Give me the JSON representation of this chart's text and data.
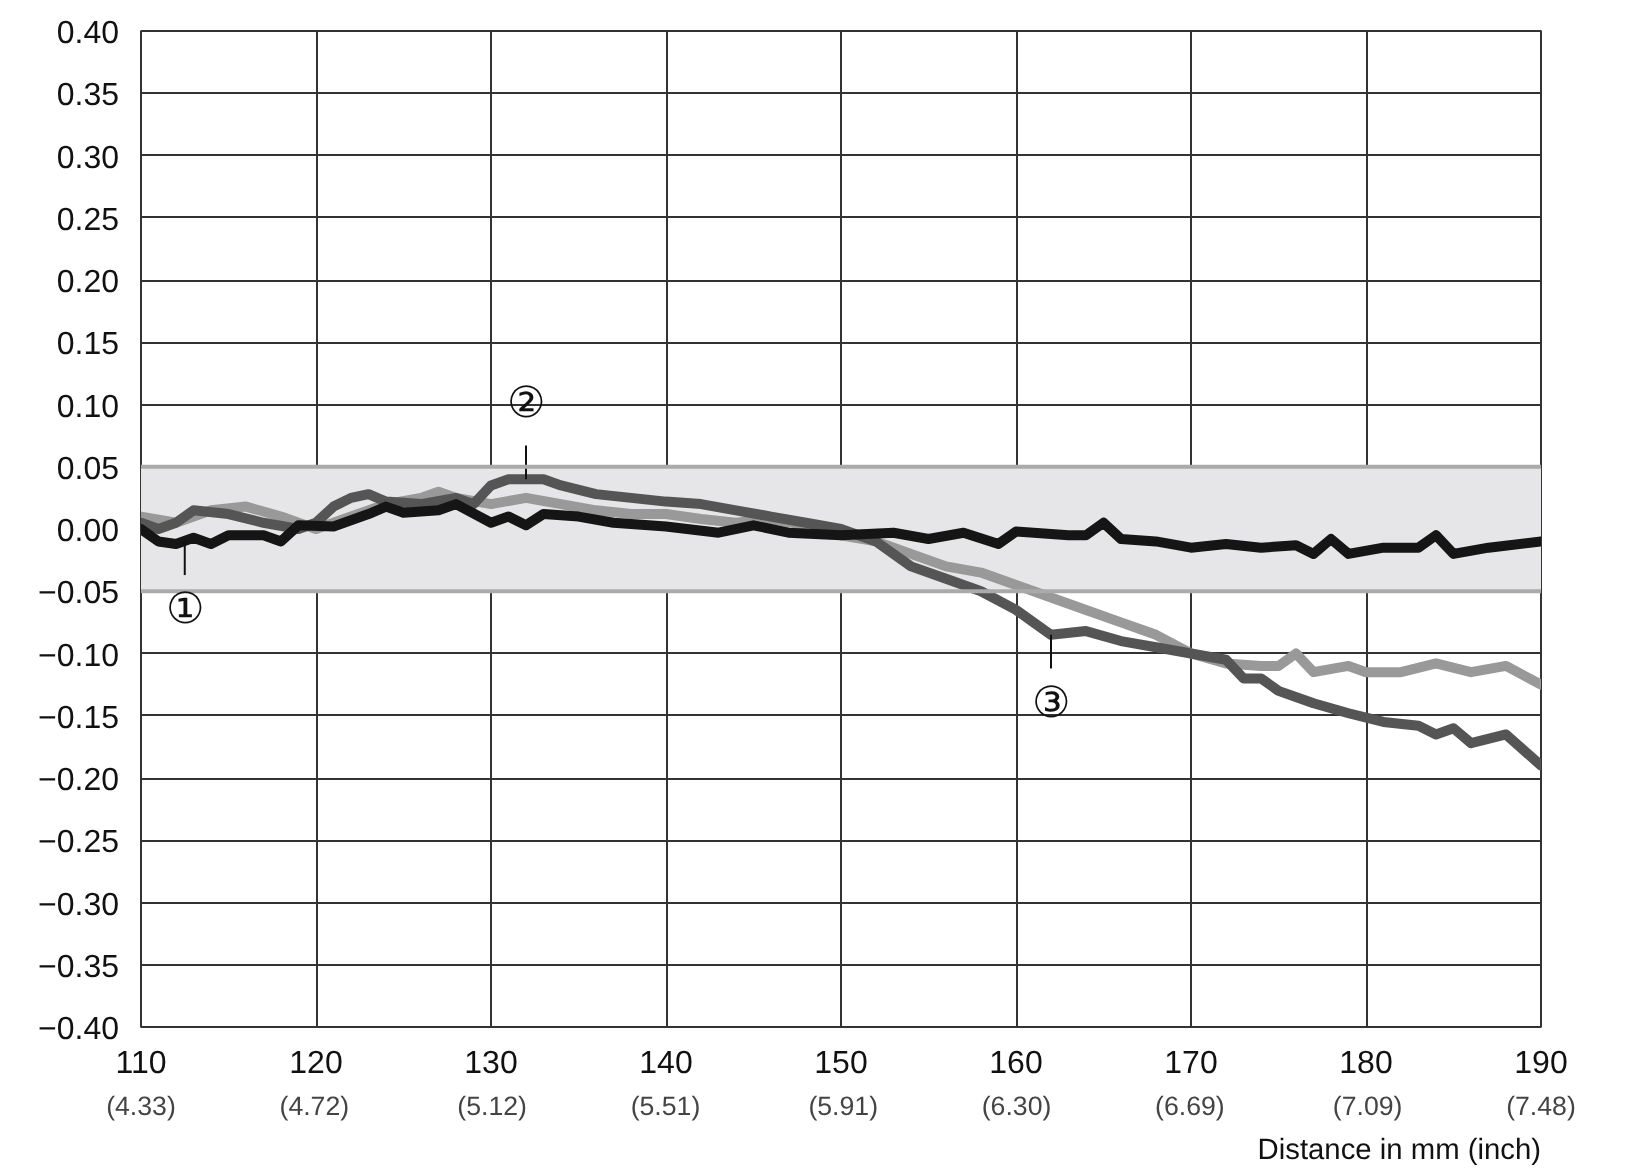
{
  "chart_data": {
    "type": "line",
    "xlabel": "Distance in mm (inch)",
    "xlim": [
      110,
      190
    ],
    "xticks": [
      110,
      120,
      130,
      140,
      150,
      160,
      170,
      180,
      190
    ],
    "x2lim": [
      4.33,
      7.48
    ],
    "x2ticks": [
      {
        "value": 4.33,
        "label": "(4.33)"
      },
      {
        "value": 4.72,
        "label": "(4.72)"
      },
      {
        "value": 5.12,
        "label": "(5.12)"
      },
      {
        "value": 5.51,
        "label": "(5.51)"
      },
      {
        "value": 5.91,
        "label": "(5.91)"
      },
      {
        "value": 6.3,
        "label": "(6.30)"
      },
      {
        "value": 6.69,
        "label": "(6.69)"
      },
      {
        "value": 7.09,
        "label": "(7.09)"
      },
      {
        "value": 7.48,
        "label": "(7.48)"
      }
    ],
    "ylim": [
      -0.4,
      0.4
    ],
    "yticks": [
      {
        "value": -0.4,
        "label": "−0.40"
      },
      {
        "value": -0.35,
        "label": "−0.35"
      },
      {
        "value": -0.3,
        "label": "−0.30"
      },
      {
        "value": -0.25,
        "label": "−0.25"
      },
      {
        "value": -0.2,
        "label": "−0.20"
      },
      {
        "value": -0.15,
        "label": "−0.15"
      },
      {
        "value": -0.1,
        "label": "−0.10"
      },
      {
        "value": -0.05,
        "label": "−0.05"
      },
      {
        "value": 0,
        "label": "0.00"
      },
      {
        "value": 0.05,
        "label": "0.05"
      },
      {
        "value": 0.1,
        "label": "0.10"
      },
      {
        "value": 0.15,
        "label": "0.15"
      },
      {
        "value": 0.2,
        "label": "0.20"
      },
      {
        "value": 0.25,
        "label": "0.25"
      },
      {
        "value": 0.3,
        "label": "0.30"
      },
      {
        "value": 0.35,
        "label": "0.35"
      },
      {
        "value": 0.4,
        "label": "0.40"
      }
    ],
    "grid": true,
    "line_style": "solid",
    "marker": "none",
    "bands": [
      {
        "axis": "y",
        "from": -0.05,
        "to": 0.05,
        "color": "#e6e6e8"
      }
    ],
    "series": [
      {
        "color": "#999999",
        "x": [
          110,
          112,
          114,
          116,
          118,
          120,
          122,
          124,
          126,
          127,
          128,
          130,
          132,
          134,
          136,
          138,
          140,
          142,
          144,
          146,
          148,
          150,
          152,
          154,
          156,
          158,
          160,
          162,
          164,
          166,
          168,
          170,
          172,
          174,
          175,
          176,
          177,
          179,
          180,
          182,
          184,
          186,
          188,
          190
        ],
        "values": [
          0.01,
          0.005,
          0.015,
          0.018,
          0.01,
          0.0,
          0.01,
          0.02,
          0.025,
          0.03,
          0.025,
          0.02,
          0.025,
          0.02,
          0.015,
          0.012,
          0.012,
          0.008,
          0.005,
          0.008,
          0.003,
          -0.005,
          -0.01,
          -0.02,
          -0.03,
          -0.035,
          -0.045,
          -0.055,
          -0.065,
          -0.075,
          -0.085,
          -0.1,
          -0.108,
          -0.11,
          -0.11,
          -0.1,
          -0.115,
          -0.11,
          -0.115,
          -0.115,
          -0.108,
          -0.115,
          -0.11,
          -0.125
        ]
      },
      {
        "color": "#555555",
        "x": [
          110,
          111,
          112,
          113,
          115,
          117,
          119,
          120,
          121,
          122,
          123,
          124,
          126,
          128,
          129,
          130,
          131,
          133,
          134,
          136,
          138,
          140,
          142,
          144,
          146,
          148,
          150,
          152,
          154,
          156,
          158,
          160,
          161,
          162,
          164,
          166,
          168,
          170,
          172,
          173,
          174,
          175,
          177,
          179,
          181,
          183,
          184,
          185,
          186,
          188,
          190
        ],
        "values": [
          0.005,
          0.0,
          0.005,
          0.015,
          0.012,
          0.005,
          0.0,
          0.005,
          0.018,
          0.025,
          0.028,
          0.022,
          0.02,
          0.025,
          0.02,
          0.035,
          0.04,
          0.04,
          0.035,
          0.028,
          0.025,
          0.022,
          0.02,
          0.015,
          0.01,
          0.005,
          0.0,
          -0.01,
          -0.03,
          -0.04,
          -0.05,
          -0.065,
          -0.075,
          -0.085,
          -0.082,
          -0.09,
          -0.095,
          -0.1,
          -0.105,
          -0.12,
          -0.12,
          -0.13,
          -0.14,
          -0.148,
          -0.155,
          -0.158,
          -0.165,
          -0.16,
          -0.172,
          -0.165,
          -0.19
        ]
      },
      {
        "color": "#151515",
        "x": [
          110,
          111,
          112,
          113,
          114,
          115,
          117,
          118,
          119,
          121,
          123,
          124,
          125,
          127,
          128,
          130,
          131,
          132,
          133,
          135,
          137,
          140,
          143,
          145,
          147,
          150,
          153,
          155,
          157,
          159,
          160,
          163,
          164,
          165,
          166,
          168,
          170,
          172,
          174,
          176,
          177,
          178,
          179,
          181,
          183,
          184,
          185,
          187,
          190
        ],
        "values": [
          0.0,
          -0.01,
          -0.012,
          -0.007,
          -0.012,
          -0.005,
          -0.005,
          -0.01,
          0.003,
          0.002,
          0.012,
          0.018,
          0.013,
          0.015,
          0.02,
          0.005,
          0.01,
          0.003,
          0.012,
          0.01,
          0.005,
          0.002,
          -0.003,
          0.003,
          -0.003,
          -0.005,
          -0.003,
          -0.008,
          -0.003,
          -0.012,
          -0.002,
          -0.005,
          -0.005,
          0.005,
          -0.008,
          -0.01,
          -0.015,
          -0.012,
          -0.015,
          -0.013,
          -0.02,
          -0.008,
          -0.02,
          -0.015,
          -0.015,
          -0.005,
          -0.02,
          -0.015,
          -0.01
        ]
      }
    ],
    "annotations": [
      {
        "text": "①",
        "x": 112.5,
        "y": -0.01
      },
      {
        "text": "②",
        "x": 132,
        "y": 0.04
      },
      {
        "text": "③",
        "x": 162,
        "y": -0.085
      }
    ]
  }
}
